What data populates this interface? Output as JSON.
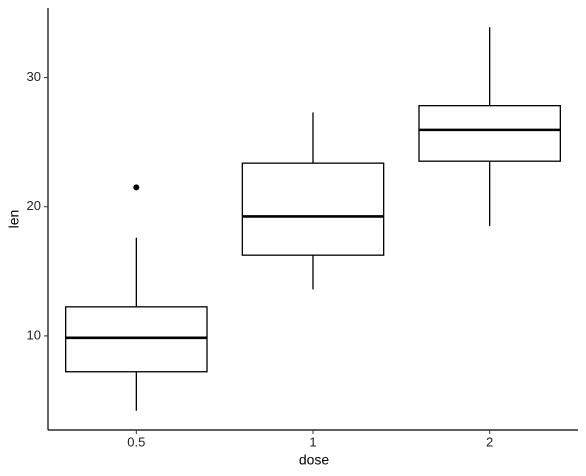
{
  "chart_data": {
    "type": "box",
    "x_label": "dose",
    "y_label": "len",
    "categories": [
      "0.5",
      "1",
      "2"
    ],
    "boxes": [
      {
        "min": 4.2,
        "q1": 7.225,
        "median": 9.85,
        "q3": 12.25,
        "max": 17.6,
        "outliers": [
          21.5
        ]
      },
      {
        "min": 13.6,
        "q1": 16.25,
        "median": 19.25,
        "q3": 23.375,
        "max": 27.3,
        "outliers": []
      },
      {
        "min": 18.5,
        "q1": 23.525,
        "median": 25.95,
        "q3": 27.825,
        "max": 33.9,
        "outliers": []
      }
    ],
    "color": "#000000",
    "fill": "#ffffff",
    "ylim": [
      2.715,
      35.385
    ],
    "yticks": [
      10,
      20,
      30
    ],
    "grid": false
  }
}
